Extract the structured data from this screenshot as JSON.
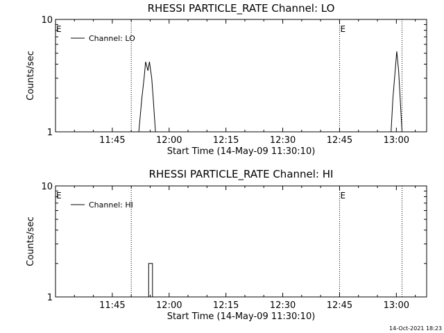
{
  "chart_data": [
    {
      "type": "line",
      "title": "RHESSI PARTICLE_RATE Channel: LO",
      "xlabel": "Start Time (14-May-09 11:30:10)",
      "ylabel": "Counts/sec",
      "y_scale": "log",
      "ylim": [
        1,
        10
      ],
      "y_ticks": [
        "1",
        "10"
      ],
      "x_tick_labels": [
        "11:45",
        "12:00",
        "12:15",
        "12:30",
        "12:45",
        "13:00"
      ],
      "x_ticks_min": [
        15,
        30,
        45,
        60,
        75,
        90
      ],
      "xlim_min": [
        0,
        98
      ],
      "markers": [
        {
          "label": "E",
          "x_min": 0
        },
        {
          "label": "E",
          "x_min": 75
        }
      ],
      "dotted_lines_min": [
        20,
        75,
        91.5
      ],
      "legend": {
        "entries": [
          "Channel: LO"
        ],
        "position": "top-left"
      },
      "series": [
        {
          "name": "Channel: LO",
          "segments": [
            [
              [
                22,
                1
              ],
              [
                22.8,
                2
              ],
              [
                23.4,
                3
              ],
              [
                23.8,
                4.2
              ],
              [
                24.4,
                3.5
              ],
              [
                24.8,
                4.2
              ],
              [
                25.4,
                3
              ],
              [
                25.8,
                2
              ],
              [
                26.4,
                1
              ]
            ],
            [
              [
                88.6,
                1
              ],
              [
                89.1,
                2
              ],
              [
                89.6,
                3.2
              ],
              [
                90.1,
                5.2
              ],
              [
                90.6,
                3.5
              ],
              [
                91,
                2
              ],
              [
                91.5,
                1
              ]
            ]
          ]
        }
      ]
    },
    {
      "type": "line",
      "title": "RHESSI PARTICLE_RATE Channel: HI",
      "xlabel": "Start Time (14-May-09 11:30:10)",
      "ylabel": "Counts/sec",
      "y_scale": "log",
      "ylim": [
        1,
        10
      ],
      "y_ticks": [
        "1",
        "10"
      ],
      "x_tick_labels": [
        "11:45",
        "12:00",
        "12:15",
        "12:30",
        "12:45",
        "13:00"
      ],
      "x_ticks_min": [
        15,
        30,
        45,
        60,
        75,
        90
      ],
      "xlim_min": [
        0,
        98
      ],
      "markers": [
        {
          "label": "E",
          "x_min": 0
        },
        {
          "label": "E",
          "x_min": 75
        }
      ],
      "dotted_lines_min": [
        20,
        75,
        91.5
      ],
      "legend": {
        "entries": [
          "Channel: HI"
        ],
        "position": "top-left"
      },
      "series": [
        {
          "name": "Channel: HI",
          "segments": [
            [
              [
                24.6,
                1
              ],
              [
                24.6,
                2
              ],
              [
                25.6,
                2
              ],
              [
                25.6,
                1
              ]
            ]
          ]
        }
      ]
    }
  ],
  "timestamp": "14-Oct-2021 18:23"
}
